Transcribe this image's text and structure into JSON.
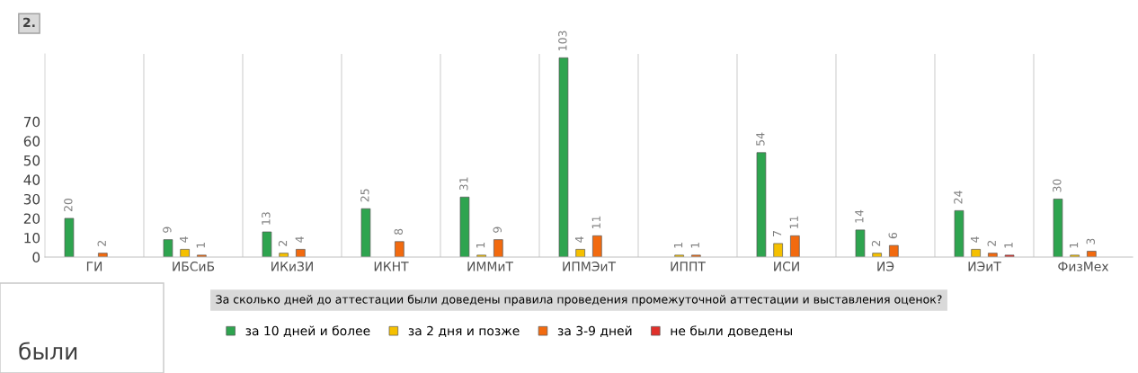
{
  "chart_data": {
    "type": "bar",
    "title": "2.",
    "categories": [
      "ГИ",
      "ИБСиБ",
      "ИКиЗИ",
      "ИКНТ",
      "ИММиТ",
      "ИПМЭиТ",
      "ИППТ",
      "ИСИ",
      "ИЭ",
      "ИЭиТ",
      "ФизМех"
    ],
    "series": [
      {
        "name": "за 10 дней и более",
        "color": "#2ea44f",
        "values": [
          20,
          9,
          13,
          25,
          31,
          103,
          null,
          54,
          14,
          24,
          30
        ]
      },
      {
        "name": "за 2 дня и позже",
        "color": "#f5c000",
        "values": [
          null,
          4,
          2,
          null,
          1,
          4,
          1,
          7,
          2,
          4,
          1
        ]
      },
      {
        "name": "за 3-9 дней",
        "color": "#f26a0f",
        "values": [
          2,
          1,
          4,
          8,
          9,
          11,
          1,
          11,
          6,
          2,
          3
        ]
      },
      {
        "name": "не были доведены",
        "color": "#e0302a",
        "values": [
          null,
          null,
          null,
          null,
          null,
          null,
          null,
          null,
          null,
          1,
          null
        ]
      }
    ],
    "legend_title": "За сколько дней до аттестации были доведены правила проведения промежуточной аттестации и выставления оценок?",
    "annotations": [
      "были"
    ],
    "ylim": [
      0,
      105
    ],
    "yticks": [
      0,
      10,
      20,
      30,
      40,
      50,
      60,
      70
    ],
    "grid": "x",
    "legend": "bottom",
    "data_labels": true
  }
}
